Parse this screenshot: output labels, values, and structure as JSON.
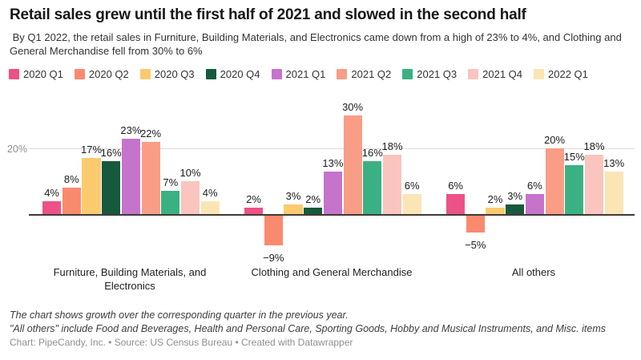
{
  "header": {
    "title": "Retail sales grew until the first half of 2021 and slowed in the second half",
    "subtitle": " By Q1 2022, the retail sales in Furniture, Building Materials, and Electronics came down from a high of 23% to 4%, and Clothing and General Merchandise fell from 30% to 6%"
  },
  "y_axis": {
    "tick_label": "20%"
  },
  "chart_data": {
    "type": "bar",
    "grouped": true,
    "title": "Retail sales grew until the first half of 2021 and slowed in the second half",
    "subtitle": " By Q1 2022, the retail sales in Furniture, Building Materials, and Electronics came down from a high of 23% to 4%, and Clothing and General Merchandise fell from 30% to 6%",
    "categories": [
      "Furniture, Building Materials, and Electronics",
      "Clothing and General Merchandise",
      "All others"
    ],
    "series": [
      {
        "name": "2020 Q1",
        "color": "#ec5287",
        "values": [
          4,
          2,
          6
        ]
      },
      {
        "name": "2020 Q2",
        "color": "#fa8a6e",
        "values": [
          8,
          -9,
          -5
        ]
      },
      {
        "name": "2020 Q3",
        "color": "#fbca6e",
        "values": [
          17,
          3,
          2
        ]
      },
      {
        "name": "2020 Q4",
        "color": "#17593c",
        "values": [
          16,
          2,
          3
        ]
      },
      {
        "name": "2021 Q1",
        "color": "#c673cc",
        "values": [
          23,
          13,
          6
        ]
      },
      {
        "name": "2021 Q2",
        "color": "#f99d87",
        "values": [
          22,
          30,
          20
        ]
      },
      {
        "name": "2021 Q3",
        "color": "#3bb183",
        "values": [
          7,
          16,
          15
        ]
      },
      {
        "name": "2021 Q4",
        "color": "#f9c5be",
        "values": [
          10,
          18,
          18
        ]
      },
      {
        "name": "2022 Q1",
        "color": "#fbe5b5",
        "values": [
          4,
          6,
          13
        ]
      }
    ],
    "unit": "%",
    "ylim": [
      -10,
      32
    ],
    "y_ticks_labeled": [
      "20%"
    ],
    "grid": "horizontal line at 20% only, dark baseline at 0",
    "legend_position": "top",
    "value_labels": "shown on every bar"
  },
  "footer": {
    "note1": "The chart shows growth over the corresponding quarter in the previous year.",
    "note2": "\"All others\" include Food and Beverages, Health and Personal Care, Sporting Goods, Hobby and Musical Instruments, and Misc. items",
    "credit": "Chart: PipeCandy, Inc. • Source: US Census Bureau • Created with Datawrapper"
  }
}
